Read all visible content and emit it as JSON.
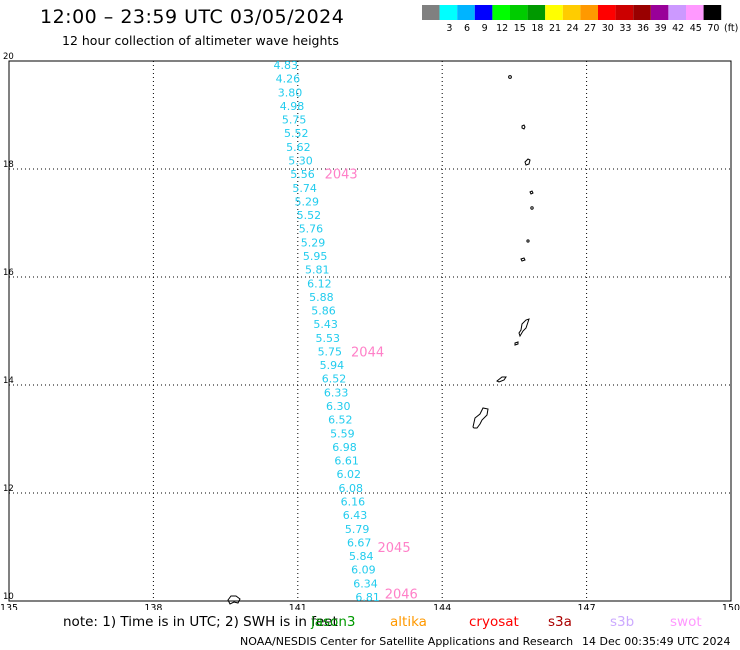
{
  "header": {
    "title": "12:00 – 23:59 UTC 03/05/2024",
    "subtitle": "12 hour collection of altimeter wave heights"
  },
  "colorbar": {
    "unit": "(ft)",
    "bins": [
      {
        "color": "#808080",
        "label": ""
      },
      {
        "color": "#00ffff",
        "label": "3"
      },
      {
        "color": "#00b4ff",
        "label": "6"
      },
      {
        "color": "#0000ff",
        "label": "9"
      },
      {
        "color": "#00ff00",
        "label": "12"
      },
      {
        "color": "#00cc00",
        "label": "15"
      },
      {
        "color": "#009900",
        "label": "18"
      },
      {
        "color": "#ffff00",
        "label": "21"
      },
      {
        "color": "#ffcc00",
        "label": "24"
      },
      {
        "color": "#ff9900",
        "label": "27"
      },
      {
        "color": "#ff0000",
        "label": "30"
      },
      {
        "color": "#cc0000",
        "label": "33"
      },
      {
        "color": "#990000",
        "label": "36"
      },
      {
        "color": "#990099",
        "label": "39"
      },
      {
        "color": "#cc99ff",
        "label": "42"
      },
      {
        "color": "#ff99ff",
        "label": "45"
      },
      {
        "color": "#000000",
        "label": "70"
      }
    ]
  },
  "map": {
    "lon_range": [
      135,
      150
    ],
    "lat_range": [
      10,
      20
    ],
    "lon_ticks": [
      "135",
      "138",
      "141",
      "144",
      "147",
      "150"
    ],
    "lat_ticks": [
      "10",
      "12",
      "14",
      "16",
      "18",
      "20"
    ],
    "track_color": "#22ccee",
    "track_start_lon": 140.75,
    "track_end_lon": 142.45,
    "swh_values": [
      "4.83",
      "4.26",
      "3.80",
      "4.98",
      "5.75",
      "5.52",
      "5.62",
      "5.30",
      "5.56",
      "5.74",
      "5.29",
      "5.52",
      "5.76",
      "5.29",
      "5.95",
      "5.81",
      "6.12",
      "5.88",
      "5.86",
      "5.43",
      "5.53",
      "5.75",
      "5.94",
      "6.52",
      "6.33",
      "6.30",
      "6.52",
      "5.59",
      "6.98",
      "6.61",
      "6.02",
      "6.08",
      "6.16",
      "6.43",
      "5.79",
      "6.67",
      "5.84",
      "6.09",
      "6.34",
      "6.81"
    ],
    "time_labels": [
      {
        "text": "2043",
        "lon": 141.9,
        "lat": 17.9
      },
      {
        "text": "2044",
        "lon": 142.45,
        "lat": 14.6
      },
      {
        "text": "2045",
        "lon": 143.0,
        "lat": 10.98
      },
      {
        "text": "2046",
        "lon": 143.15,
        "lat": 10.12
      }
    ],
    "time_label_color": "#ff80c8"
  },
  "footer": {
    "note": "note:  1) Time is in UTC;  2) SWH is in feet",
    "missions": [
      {
        "name": "jason3",
        "color": "#009900"
      },
      {
        "name": "altika",
        "color": "#ff9900"
      },
      {
        "name": "cryosat",
        "color": "#ff0000"
      },
      {
        "name": "s3a",
        "color": "#aa0000"
      },
      {
        "name": "s3b",
        "color": "#ccaaff"
      },
      {
        "name": "swot",
        "color": "#ff99ff"
      }
    ],
    "credit": "NOAA/NESDIS Center for Satellite Applications and Research",
    "timestamp": "14 Dec 00:35:49 UTC 2024"
  }
}
